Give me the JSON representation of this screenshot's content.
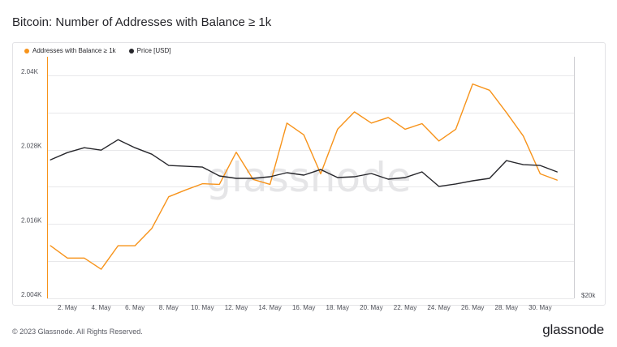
{
  "page": {
    "title": "Bitcoin: Number of Addresses with Balance ≥ 1k",
    "copyright": "© 2023 Glassnode. All Rights Reserved.",
    "brand": "glassnode",
    "watermark": "glassnode"
  },
  "colors": {
    "addresses": "#f7931a",
    "price": "#26262b",
    "grid": "#e8e8ea"
  },
  "chart_data": {
    "type": "line",
    "title": "Bitcoin: Number of Addresses with Balance ≥ 1k",
    "x_ticks": [
      "2. May",
      "4. May",
      "6. May",
      "8. May",
      "10. May",
      "12. May",
      "14. May",
      "16. May",
      "18. May",
      "20. May",
      "22. May",
      "24. May",
      "26. May",
      "28. May",
      "30. May"
    ],
    "x_tick_days": [
      2,
      4,
      6,
      8,
      10,
      12,
      14,
      16,
      18,
      20,
      22,
      24,
      26,
      28,
      30
    ],
    "x_range": [
      0.8,
      32
    ],
    "y_left": {
      "ticks": [
        "2.004K",
        "2.016K",
        "2.028K",
        "2.04K"
      ],
      "tick_values": [
        2004,
        2016,
        2028,
        2040
      ],
      "range": [
        2004,
        2043
      ]
    },
    "y_right": {
      "ticks": [
        "$20k"
      ],
      "tick_values": [
        20000
      ],
      "range": [
        20000,
        35000
      ]
    },
    "grid": true,
    "legend_position": "top-left",
    "series": [
      {
        "name": "Addresses with Balance ≥ 1k",
        "axis": "left",
        "x": [
          1,
          2,
          3,
          4,
          5,
          6,
          7,
          8,
          9,
          10,
          11,
          12,
          13,
          14,
          15,
          16,
          17,
          18,
          19,
          20,
          21,
          22,
          23,
          24,
          25,
          26,
          27,
          28,
          29,
          30,
          31
        ],
        "values": [
          2012.5,
          2010.5,
          2010.5,
          2008.7,
          2012.5,
          2012.5,
          2015.3,
          2020.4,
          2021.5,
          2022.5,
          2022.4,
          2027.6,
          2023.2,
          2022.4,
          2032.3,
          2030.4,
          2024.1,
          2031.3,
          2034.1,
          2032.3,
          2033.2,
          2031.3,
          2032.2,
          2029.4,
          2031.3,
          2038.6,
          2037.6,
          2034.0,
          2030.2,
          2024.1,
          2023.1
        ]
      },
      {
        "name": "Price [USD]",
        "axis": "right",
        "x": [
          1,
          2,
          3,
          4,
          5,
          6,
          7,
          8,
          9,
          10,
          11,
          12,
          13,
          14,
          15,
          16,
          17,
          18,
          19,
          20,
          21,
          22,
          23,
          24,
          25,
          26,
          27,
          28,
          29,
          30,
          31
        ],
        "values": [
          28600,
          29050,
          29350,
          29200,
          29850,
          29350,
          28950,
          28250,
          28200,
          28150,
          27600,
          27450,
          27450,
          27550,
          27800,
          27650,
          28000,
          27500,
          27550,
          27750,
          27400,
          27500,
          27850,
          26950,
          27100,
          27300,
          27450,
          28550,
          28300,
          28250,
          27850
        ]
      }
    ]
  }
}
